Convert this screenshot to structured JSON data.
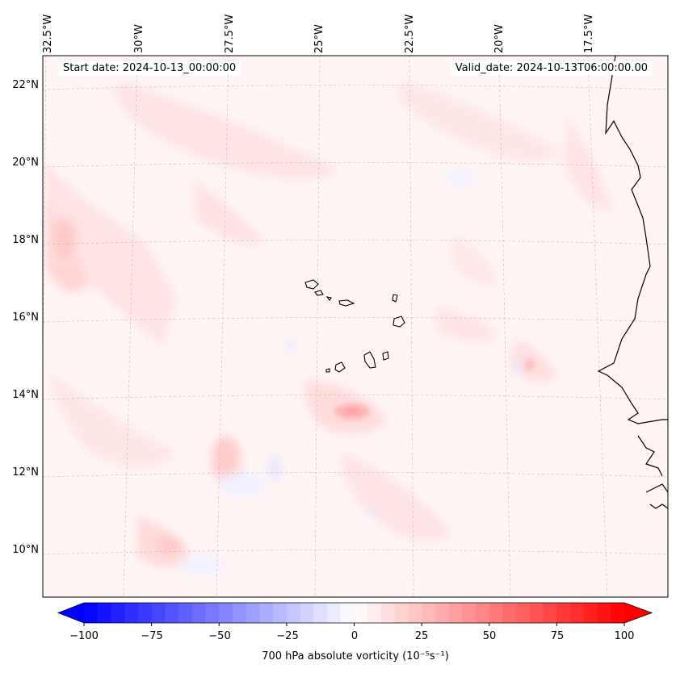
{
  "map": {
    "start_date": "Start date: 2024-10-13_00:00:00",
    "valid_date": "Valid_date: 2024-10-13T06:00:00.00",
    "lon_labels": [
      "32.5°W",
      "30°W",
      "27.5°W",
      "25°W",
      "22.5°W",
      "20°W",
      "17.5°W"
    ],
    "lat_labels": [
      "22°N",
      "20°N",
      "18°N",
      "16°N",
      "14°N",
      "12°N",
      "10°N"
    ],
    "colors": {
      "negative": "#0000ff",
      "neutral": "#ffffff",
      "positive": "#ff0000",
      "coast": "#000000"
    }
  },
  "colorbar": {
    "ticks": [
      "−100",
      "−75",
      "−50",
      "−25",
      "0",
      "25",
      "50",
      "75",
      "100"
    ],
    "label": "700 hPa absolute vorticity (10⁻⁵s⁻¹)",
    "range": [
      -100,
      100
    ],
    "step": 5
  }
}
